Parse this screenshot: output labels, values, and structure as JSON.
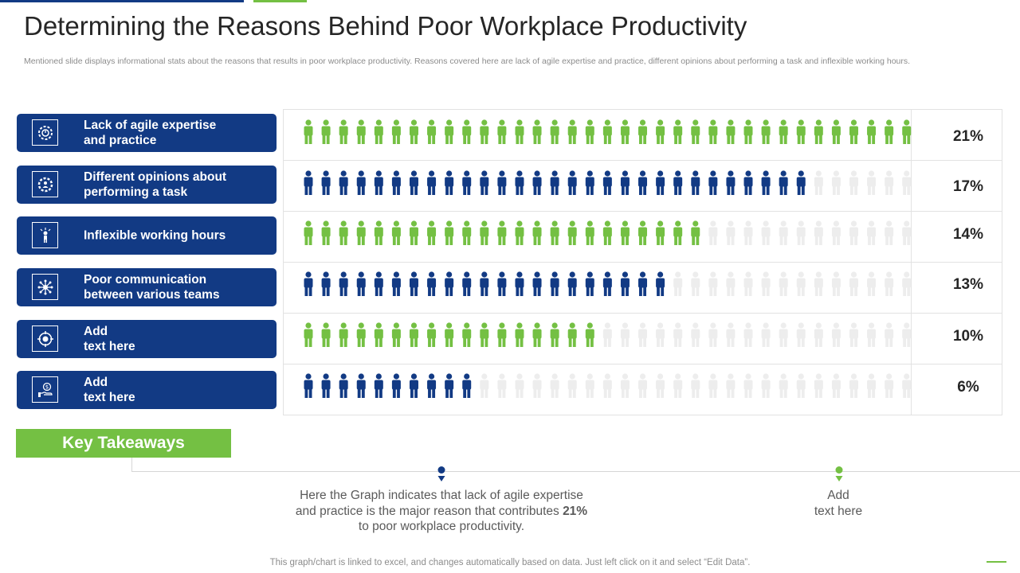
{
  "slide": {
    "title": "Determining the Reasons Behind Poor Workplace Productivity",
    "subtitle": "Mentioned slide displays informational stats about the reasons that results in poor workplace productivity.  Reasons covered here are lack of agile expertise and practice, different opinions about performing a task and inflexible working hours.",
    "footnote": "This graph/chart is linked to excel,  and changes automatically based on data. Just left click on it and select “Edit Data”."
  },
  "colors": {
    "navy": "#123a84",
    "green": "#74c043",
    "empty": "#ededed"
  },
  "reasons": [
    {
      "label": "Lack of agile expertise\nand practice",
      "icon": "gear-clock-icon",
      "pct_label": "21%"
    },
    {
      "label": "Different opinions about\nperforming a task",
      "icon": "gear-person-icon",
      "pct_label": "17%"
    },
    {
      "label": "Inflexible working hours",
      "icon": "stressed-person-icon",
      "pct_label": "14%"
    },
    {
      "label": "Poor communication\nbetween various teams",
      "icon": "network-icon",
      "pct_label": "13%"
    },
    {
      "label": "Add\ntext here",
      "icon": "target-gear-icon",
      "pct_label": "10%"
    },
    {
      "label": "Add\ntext here",
      "icon": "hand-dollar-icon",
      "pct_label": "6%"
    }
  ],
  "chart_data": {
    "type": "bar",
    "categories": [
      "Lack of agile expertise and practice",
      "Different opinions about performing a task",
      "Inflexible working hours",
      "Poor communication between various teams",
      "Add text here",
      "Add text here"
    ],
    "values": [
      21,
      17,
      14,
      13,
      10,
      6
    ],
    "unit": "%",
    "icons_per_row": 35,
    "filled_icons": [
      35,
      29,
      23,
      21,
      17,
      10
    ],
    "series_colors": [
      "#74c043",
      "#123a84",
      "#74c043",
      "#123a84",
      "#74c043",
      "#123a84"
    ]
  },
  "takeaways": {
    "heading": "Key Takeaways",
    "item1_pre": "Here the Graph indicates that lack of agile expertise and practice is the major reason that  contributes",
    "item1_bold": "21%",
    "item1_post": " to poor workplace productivity.",
    "item2": "Add\ntext here"
  }
}
